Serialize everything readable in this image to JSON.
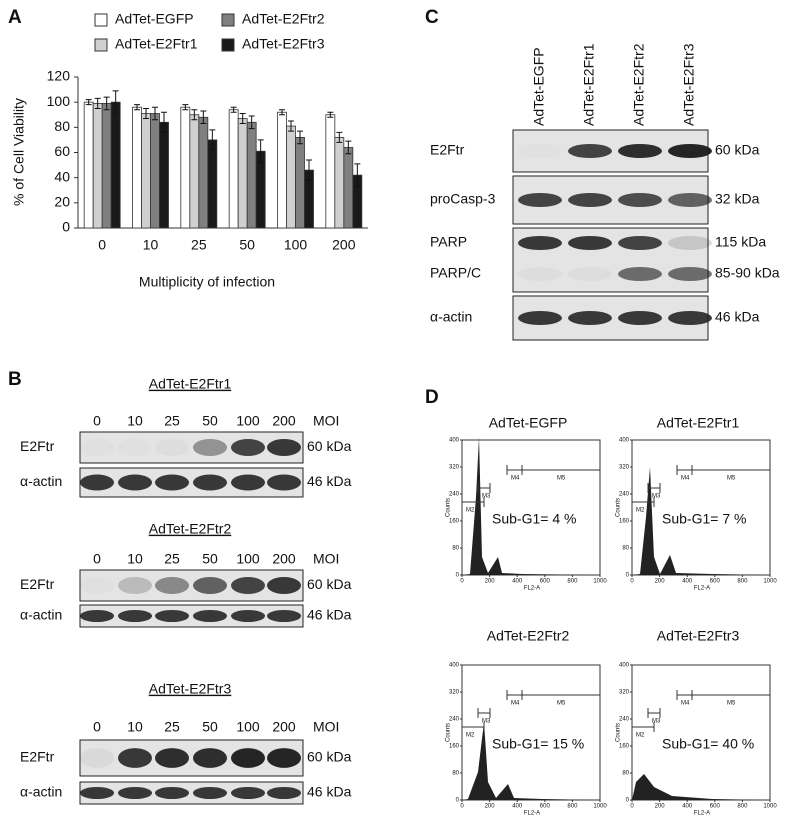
{
  "chart_data": {
    "type": "bar",
    "panel_label": "A",
    "ylabel": "% of Cell Viability",
    "xlabel": "Multiplicity of infection",
    "categories": [
      "0",
      "10",
      "25",
      "50",
      "100",
      "200"
    ],
    "series": [
      {
        "name": "AdTet-EGFP",
        "color": "#ffffff",
        "values": [
          100,
          96,
          96,
          94,
          92,
          90
        ],
        "errors": [
          2,
          2,
          2,
          2,
          2,
          2
        ]
      },
      {
        "name": "AdTet-E2Ftr1",
        "color": "#d0d0d0",
        "values": [
          99,
          91,
          90,
          87,
          81,
          72
        ],
        "errors": [
          4,
          4,
          4,
          4,
          4,
          4
        ]
      },
      {
        "name": "AdTet-E2Ftr2",
        "color": "#808080",
        "values": [
          99,
          91,
          88,
          84,
          72,
          64
        ],
        "errors": [
          5,
          5,
          5,
          5,
          5,
          5
        ]
      },
      {
        "name": "AdTet-E2Ftr3",
        "color": "#1a1a1a",
        "values": [
          100,
          84,
          70,
          61,
          46,
          42
        ],
        "errors": [
          9,
          8,
          8,
          9,
          8,
          9
        ]
      }
    ],
    "ylim": [
      0,
      120
    ],
    "yticks": [
      0,
      20,
      40,
      60,
      80,
      100,
      120
    ]
  },
  "panel_b": {
    "label": "B",
    "moi": [
      "0",
      "10",
      "25",
      "50",
      "100",
      "200"
    ],
    "moi_label": "MOI",
    "blots": [
      {
        "title": "AdTet-E2Ftr1",
        "rows": [
          {
            "name": "E2Ftr",
            "size": "60 kDa",
            "intensity": [
              0.02,
              0.02,
              0.03,
              0.4,
              0.8,
              0.85
            ]
          },
          {
            "name": "α-actin",
            "size": "46 kDa",
            "intensity": [
              0.85,
              0.85,
              0.85,
              0.85,
              0.85,
              0.85
            ]
          }
        ]
      },
      {
        "title": "AdTet-E2Ftr2",
        "rows": [
          {
            "name": "E2Ftr",
            "size": "60 kDa",
            "intensity": [
              0.02,
              0.2,
              0.45,
              0.65,
              0.8,
              0.85
            ]
          },
          {
            "name": "α-actin",
            "size": "46 kDa",
            "intensity": [
              0.85,
              0.85,
              0.85,
              0.85,
              0.85,
              0.85
            ]
          }
        ]
      },
      {
        "title": "AdTet-E2Ftr3",
        "rows": [
          {
            "name": "E2Ftr",
            "size": "60 kDa",
            "intensity": [
              0.05,
              0.85,
              0.9,
              0.9,
              0.95,
              0.95
            ]
          },
          {
            "name": "α-actin",
            "size": "46 kDa",
            "intensity": [
              0.85,
              0.85,
              0.85,
              0.85,
              0.85,
              0.85
            ]
          }
        ]
      }
    ]
  },
  "panel_c": {
    "label": "C",
    "lanes": [
      "AdTet-EGFP",
      "AdTet-E2Ftr1",
      "AdTet-E2Ftr2",
      "AdTet-E2Ftr3"
    ],
    "boxes": [
      {
        "rows": [
          {
            "name": "E2Ftr",
            "size": "60  kDa",
            "intensity": [
              0.02,
              0.8,
              0.9,
              0.95
            ]
          }
        ]
      },
      {
        "rows": [
          {
            "name": "proCasp-3",
            "size": "32 kDa",
            "intensity": [
              0.8,
              0.8,
              0.75,
              0.65
            ]
          }
        ]
      },
      {
        "rows": [
          {
            "name": "PARP",
            "size": "115  kDa",
            "intensity": [
              0.85,
              0.85,
              0.8,
              0.15
            ]
          },
          {
            "name": "PARP/C",
            "size": "85-90  kDa",
            "intensity": [
              0.03,
              0.03,
              0.6,
              0.6
            ]
          }
        ]
      },
      {
        "rows": [
          {
            "name": "α-actin",
            "size": "46  kDa",
            "intensity": [
              0.85,
              0.85,
              0.85,
              0.85
            ]
          }
        ]
      }
    ]
  },
  "panel_d": {
    "label": "D",
    "y_axis": "Counts",
    "x_axis": "FL2-A",
    "xticks": [
      0,
      200,
      400,
      600,
      800,
      1000
    ],
    "yticks": [
      0,
      80,
      160,
      240,
      320,
      400
    ],
    "gates": [
      "M2",
      "M3",
      "M4",
      "M5"
    ],
    "plots": [
      {
        "title": "AdTet-EGFP",
        "annotation": "Sub-G1= 4 %"
      },
      {
        "title": "AdTet-E2Ftr1",
        "annotation": "Sub-G1= 7 %"
      },
      {
        "title": "AdTet-E2Ftr2",
        "annotation": "Sub-G1= 15 %"
      },
      {
        "title": "AdTet-E2Ftr3",
        "annotation": "Sub-G1= 40 %"
      }
    ]
  }
}
